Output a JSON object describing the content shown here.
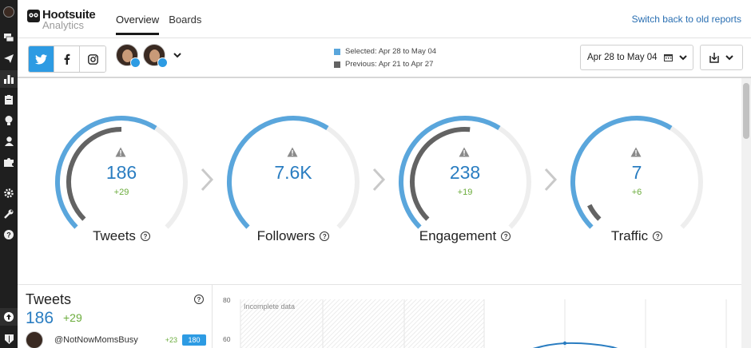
{
  "app": {
    "logo_name": "Hootsuite",
    "logo_sub": "Analytics"
  },
  "nav": {
    "tabs": [
      {
        "label": "Overview",
        "active": true
      },
      {
        "label": "Boards",
        "active": false
      }
    ],
    "switch_link": "Switch back to old reports"
  },
  "rail": {
    "icons": [
      "avatar",
      "streams-icon",
      "publisher-icon",
      "analytics-icon",
      "assignments-icon",
      "insights-icon",
      "contacts-icon",
      "apps-icon",
      "settings-icon",
      "tools-icon",
      "help-icon",
      "upload-icon",
      "shield-icon"
    ]
  },
  "toolbar": {
    "networks": [
      {
        "name": "twitter-icon",
        "active": true
      },
      {
        "name": "facebook-icon",
        "active": false
      },
      {
        "name": "instagram-icon",
        "active": false
      }
    ],
    "legend_selected": "Selected: Apr 28 to May 04",
    "legend_previous": "Previous: Apr 21 to Apr 27",
    "date_range": "Apr 28 to May 04",
    "colors": {
      "selected": "#5aa6dc",
      "previous": "#636363"
    }
  },
  "gauges": [
    {
      "label": "Tweets",
      "value": "186",
      "delta": "+29",
      "selected_pct": 0.62,
      "previous_pct": 0.5
    },
    {
      "label": "Followers",
      "value": "7.6K",
      "delta": "",
      "selected_pct": 0.62,
      "previous_pct": 0
    },
    {
      "label": "Engagement",
      "value": "238",
      "delta": "+19",
      "selected_pct": 0.62,
      "previous_pct": 0.52
    },
    {
      "label": "Traffic",
      "value": "7",
      "delta": "+6",
      "selected_pct": 0.62,
      "previous_pct": 0.07
    }
  ],
  "panel": {
    "title": "Tweets",
    "total": "186",
    "total_delta": "+29",
    "rows": [
      {
        "handle": "@NotNowMomsBusy",
        "delta": "+23",
        "count": "180"
      }
    ]
  },
  "chart": {
    "incomplete_label": "Incomplete data",
    "y_ticks": [
      "80",
      "60"
    ]
  }
}
